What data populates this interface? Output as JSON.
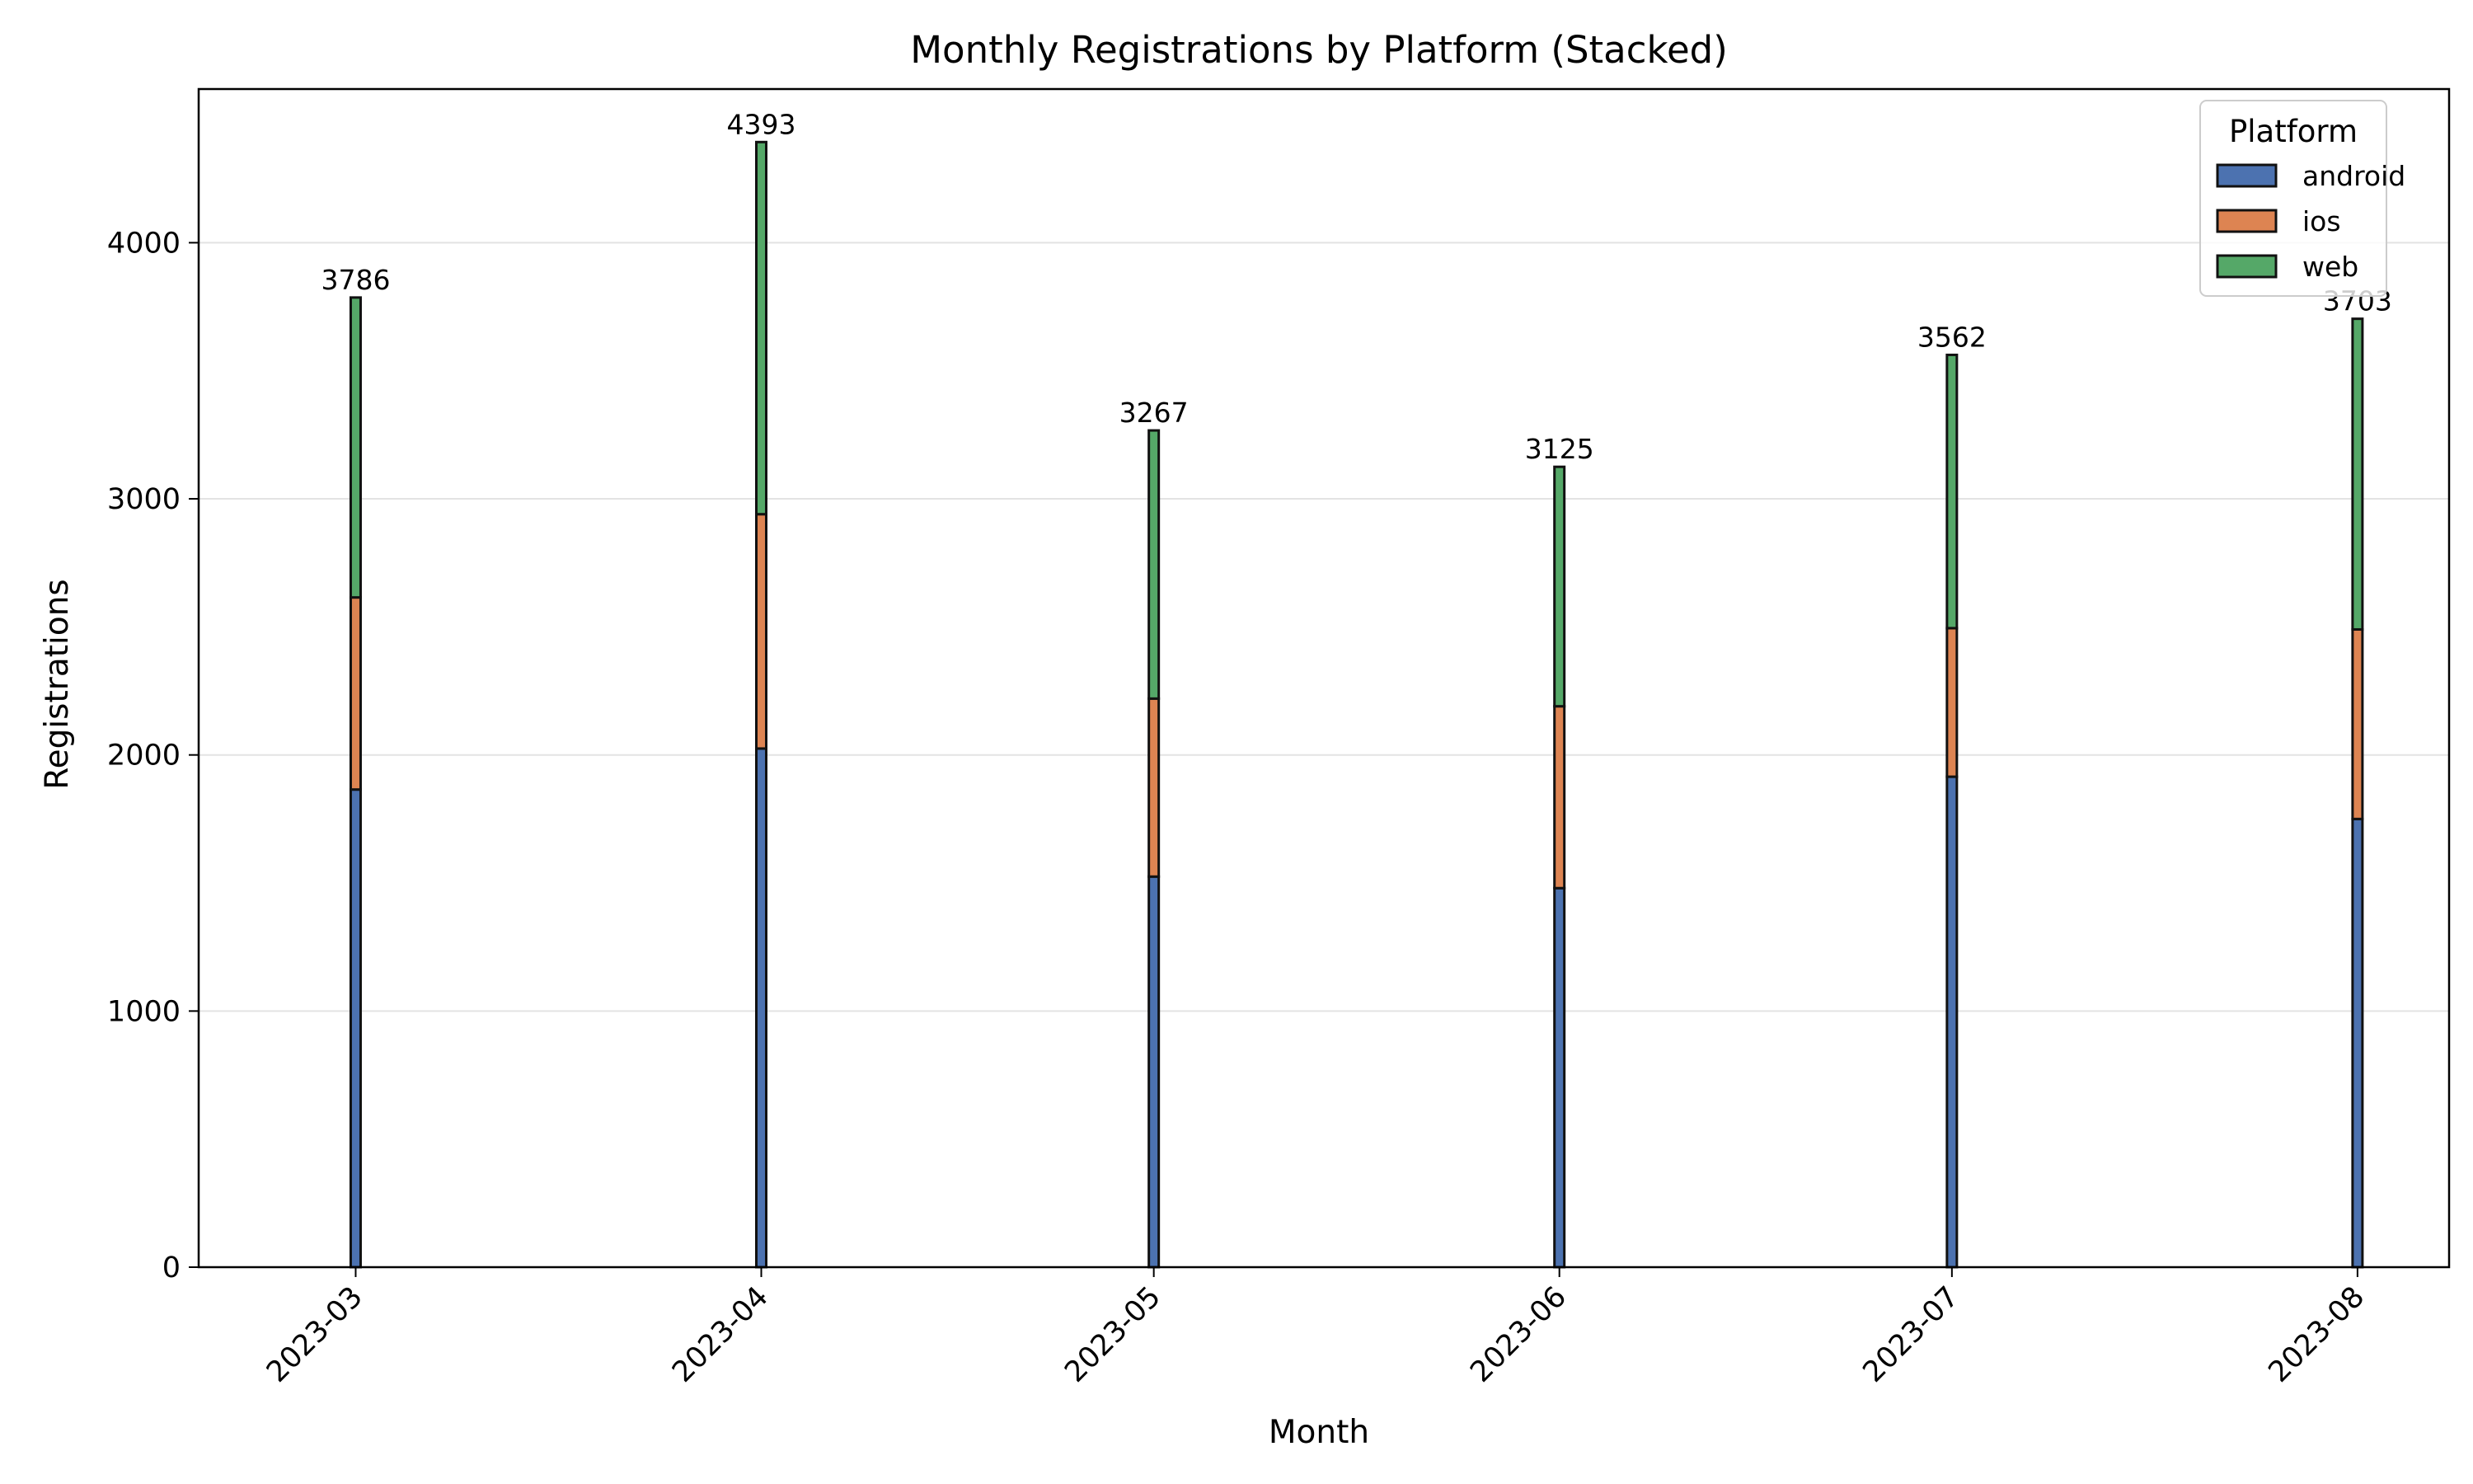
{
  "chart_data": {
    "type": "bar",
    "stacked": true,
    "title": "Monthly Registrations by Platform (Stacked)",
    "xlabel": "Month",
    "ylabel": "Registrations",
    "categories": [
      "2023-03",
      "2023-04",
      "2023-05",
      "2023-06",
      "2023-07",
      "2023-08"
    ],
    "x_days": [
      0,
      31,
      61,
      92,
      122,
      153
    ],
    "series": [
      {
        "name": "android",
        "color": "#4c72b0",
        "values": [
          1865,
          2025,
          1525,
          1480,
          1915,
          1750
        ]
      },
      {
        "name": "ios",
        "color": "#dd8452",
        "values": [
          750,
          915,
          695,
          710,
          580,
          740
        ]
      },
      {
        "name": "web",
        "color": "#55a868",
        "values": [
          1171,
          1453,
          1047,
          935,
          1067,
          1213
        ]
      }
    ],
    "totals": [
      "3786",
      "4393",
      "3267",
      "3125",
      "3562",
      "3703"
    ],
    "ylim": [
      0,
      4600
    ],
    "yticks": [
      0,
      1000,
      2000,
      3000,
      4000
    ],
    "grid": "y",
    "legend": {
      "title": "Platform",
      "placement": "top-right"
    }
  }
}
